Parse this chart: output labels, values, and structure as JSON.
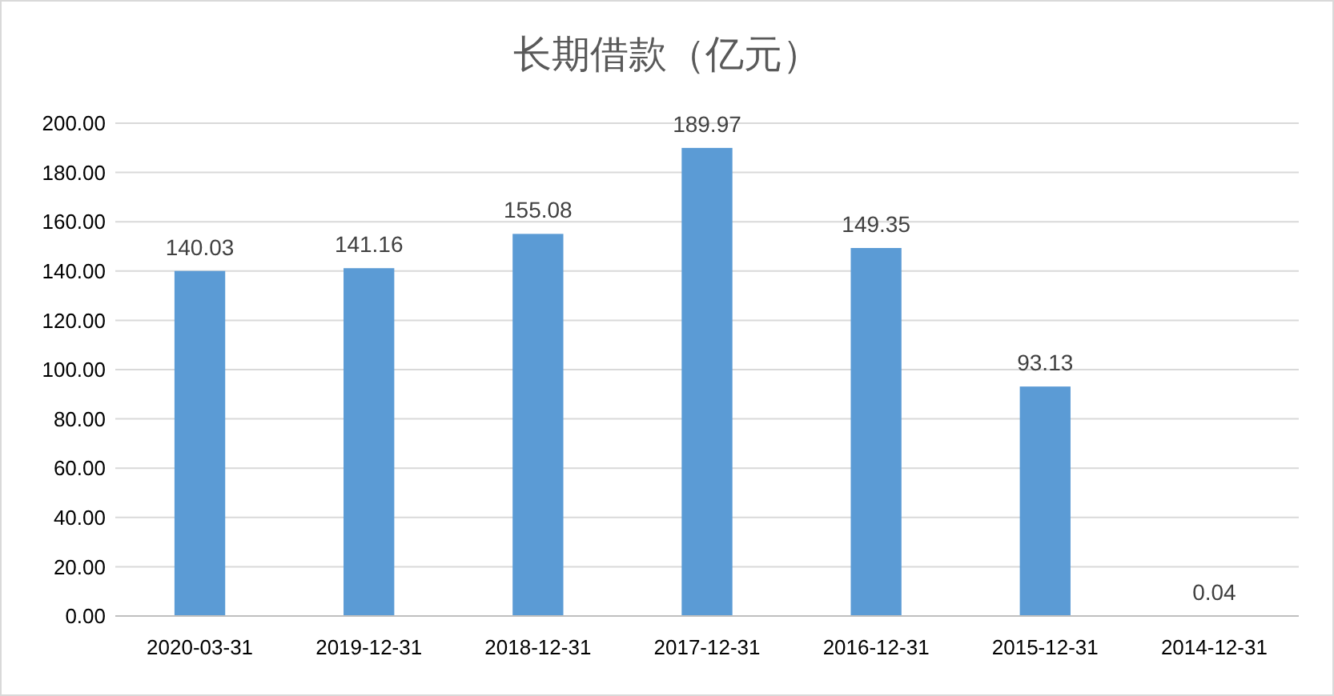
{
  "chart_data": {
    "type": "bar",
    "title": "长期借款（亿元）",
    "categories": [
      "2020-03-31",
      "2019-12-31",
      "2018-12-31",
      "2017-12-31",
      "2016-12-31",
      "2015-12-31",
      "2014-12-31"
    ],
    "values": [
      140.03,
      141.16,
      155.08,
      189.97,
      149.35,
      93.13,
      0.04
    ],
    "color": "#5b9bd5",
    "ylim": [
      0,
      200
    ],
    "yticks": [
      {
        "value": 0,
        "label": "0.00"
      },
      {
        "value": 20,
        "label": "20.00"
      },
      {
        "value": 40,
        "label": "40.00"
      },
      {
        "value": 60,
        "label": "60.00"
      },
      {
        "value": 80,
        "label": "80.00"
      },
      {
        "value": 100,
        "label": "100.00"
      },
      {
        "value": 120,
        "label": "120.00"
      },
      {
        "value": 140,
        "label": "140.00"
      },
      {
        "value": 160,
        "label": "160.00"
      },
      {
        "value": 180,
        "label": "180.00"
      },
      {
        "value": 200,
        "label": "200.00"
      }
    ],
    "grid": "y",
    "data_labels": true
  }
}
